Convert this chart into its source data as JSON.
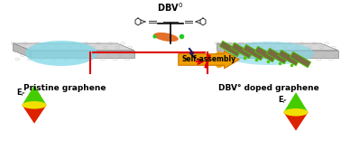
{
  "title_center": "DBV°",
  "label_left": "Pristine graphene",
  "label_right": "DBV° doped graphene",
  "arrow_label": "Self-assembly",
  "ef_label": "Eₚ",
  "bg_color": "#ffffff",
  "graphene_bg": "#d0d0d0",
  "graphene_hex_color": "#b0b0b0",
  "cyan_blob": "#7fd8e8",
  "cone_green": "#44cc00",
  "cone_yellow": "#f0e000",
  "cone_red": "#dd2200",
  "arrow_orange": "#f0a000",
  "arrow_outline": "#cc7700",
  "red_box_color": "#dd0000",
  "molecule_color": "#333333",
  "dbv_stripe_color": "#7a6a40",
  "dbv_stripe_edge": "#44cc00",
  "lightning_dark": "#1a1a66",
  "lightning_red": "#cc2200"
}
